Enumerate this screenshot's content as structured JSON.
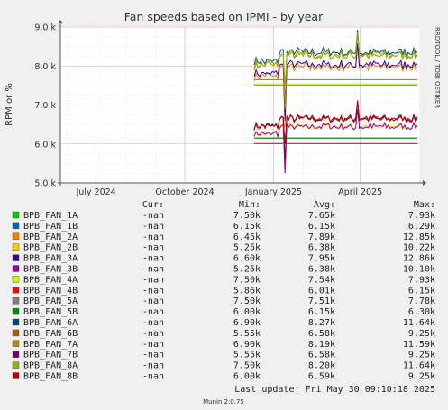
{
  "chart_data": {
    "type": "line",
    "title": "Fan speeds based on IPMI - by year",
    "ylabel": "RPM or %",
    "xlabel": "",
    "watermark": "RRDTOOL / TOBI OETIKER",
    "ylim": [
      5000,
      9000
    ],
    "y_ticks": [
      {
        "value": 9000,
        "label": "9.0 k"
      },
      {
        "value": 8000,
        "label": "8.0 k"
      },
      {
        "value": 7000,
        "label": "7.0 k"
      },
      {
        "value": 6000,
        "label": "6.0 k"
      },
      {
        "value": 5000,
        "label": "5.0 k"
      }
    ],
    "x_range": [
      "2024-05-25",
      "2025-06-01"
    ],
    "x_ticks": [
      {
        "date": "2024-07-01",
        "label": "July 2024"
      },
      {
        "date": "2024-10-01",
        "label": "October 2024"
      },
      {
        "date": "2025-01-01",
        "label": "January 2025"
      },
      {
        "date": "2025-04-01",
        "label": "April 2025"
      }
    ],
    "x_minor_ticks": [
      "2024-06-01",
      "2024-08-01",
      "2024-09-01",
      "2024-11-01",
      "2024-12-01",
      "2025-02-01",
      "2025-03-01",
      "2025-05-01"
    ],
    "data_start": "2024-12-12",
    "columns": [
      "Cur:",
      "Min:",
      "Avg:",
      "Max:"
    ],
    "series": [
      {
        "name": "BPB_FAN_1A",
        "color": "#00cc00",
        "cur": "-nan",
        "min": "7.50k",
        "avg": "7.65k",
        "max": "7.93k",
        "min_v": 7500,
        "avg_v": 7650,
        "max_v": 7930,
        "flat": true
      },
      {
        "name": "BPB_FAN_1B",
        "color": "#0066b3",
        "cur": "-nan",
        "min": "6.15k",
        "avg": "6.15k",
        "max": "6.29k",
        "min_v": 6150,
        "avg_v": 6150,
        "max_v": 6290,
        "flat": true
      },
      {
        "name": "BPB_FAN_2A",
        "color": "#ff8000",
        "cur": "-nan",
        "min": "6.45k",
        "avg": "7.89k",
        "max": "12.85k",
        "min_v": 6450,
        "avg_v": 7890,
        "max_v": 12850
      },
      {
        "name": "BPB_FAN_2B",
        "color": "#ffcc00",
        "cur": "-nan",
        "min": "5.25k",
        "avg": "6.38k",
        "max": "10.22k",
        "min_v": 5250,
        "avg_v": 6380,
        "max_v": 10220
      },
      {
        "name": "BPB_FAN_3A",
        "color": "#330099",
        "cur": "-nan",
        "min": "6.60k",
        "avg": "7.95k",
        "max": "12.86k",
        "min_v": 6600,
        "avg_v": 7950,
        "max_v": 12860
      },
      {
        "name": "BPB_FAN_3B",
        "color": "#990099",
        "cur": "-nan",
        "min": "5.25k",
        "avg": "6.38k",
        "max": "10.10k",
        "min_v": 5250,
        "avg_v": 6380,
        "max_v": 10100
      },
      {
        "name": "BPB_FAN_4A",
        "color": "#ccff00",
        "cur": "-nan",
        "min": "7.50k",
        "avg": "7.54k",
        "max": "7.93k",
        "min_v": 7500,
        "avg_v": 7540,
        "max_v": 7930,
        "flat": true
      },
      {
        "name": "BPB_FAN_4B",
        "color": "#ff0000",
        "cur": "-nan",
        "min": "5.86k",
        "avg": "6.01k",
        "max": "6.15k",
        "min_v": 5860,
        "avg_v": 6010,
        "max_v": 6150,
        "flat": true
      },
      {
        "name": "BPB_FAN_5A",
        "color": "#808080",
        "cur": "-nan",
        "min": "7.50k",
        "avg": "7.51k",
        "max": "7.78k",
        "min_v": 7500,
        "avg_v": 7510,
        "max_v": 7780,
        "flat": true
      },
      {
        "name": "BPB_FAN_5B",
        "color": "#008f00",
        "cur": "-nan",
        "min": "6.00k",
        "avg": "6.15k",
        "max": "6.30k",
        "min_v": 6000,
        "avg_v": 6150,
        "max_v": 6300,
        "flat": true
      },
      {
        "name": "BPB_FAN_6A",
        "color": "#00487d",
        "cur": "-nan",
        "min": "6.90k",
        "avg": "8.27k",
        "max": "11.64k",
        "min_v": 6900,
        "avg_v": 8270,
        "max_v": 11640
      },
      {
        "name": "BPB_FAN_6B",
        "color": "#b35a00",
        "cur": "-nan",
        "min": "5.55k",
        "avg": "6.58k",
        "max": "9.25k",
        "min_v": 5550,
        "avg_v": 6580,
        "max_v": 9250
      },
      {
        "name": "BPB_FAN_7A",
        "color": "#b38f00",
        "cur": "-nan",
        "min": "6.90k",
        "avg": "8.19k",
        "max": "11.59k",
        "min_v": 6900,
        "avg_v": 8190,
        "max_v": 11590
      },
      {
        "name": "BPB_FAN_7B",
        "color": "#6b006b",
        "cur": "-nan",
        "min": "5.55k",
        "avg": "6.58k",
        "max": "9.25k",
        "min_v": 5550,
        "avg_v": 6580,
        "max_v": 9250
      },
      {
        "name": "BPB_FAN_8A",
        "color": "#8fb300",
        "cur": "-nan",
        "min": "7.50k",
        "avg": "8.20k",
        "max": "11.64k",
        "min_v": 7500,
        "avg_v": 8200,
        "max_v": 11640
      },
      {
        "name": "BPB_FAN_8B",
        "color": "#b30000",
        "cur": "-nan",
        "min": "6.00k",
        "avg": "6.59k",
        "max": "9.25k",
        "min_v": 6000,
        "avg_v": 6590,
        "max_v": 9250
      }
    ],
    "last_update": "Last update: Fri May 30 09:10:18 2025",
    "footer": "Munin 2.0.75",
    "colors": {
      "background": "#f0f0f0",
      "plot_background": "#ffffff",
      "grid": "#ff9999",
      "axis": "#606060"
    }
  }
}
